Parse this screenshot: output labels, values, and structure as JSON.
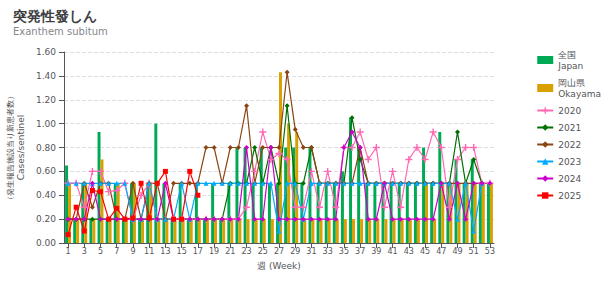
{
  "chart_data": {
    "type": "bar",
    "title": "突発性發しん",
    "subtitle": "Exanthem subitum",
    "xlabel": "週 (Week)",
    "ylabel": "Cases/sentinel",
    "annotations": [
      "（発生報告施設当り新患者数）"
    ],
    "x": [
      1,
      2,
      3,
      4,
      5,
      6,
      7,
      8,
      9,
      10,
      11,
      12,
      13,
      14,
      15,
      16,
      17,
      18,
      19,
      20,
      21,
      22,
      23,
      24,
      25,
      26,
      27,
      28,
      29,
      30,
      31,
      32,
      33,
      34,
      35,
      36,
      37,
      38,
      39,
      40,
      41,
      42,
      43,
      44,
      45,
      46,
      47,
      48,
      49,
      50,
      51,
      52,
      53
    ],
    "xlim": [
      0.5,
      53.5
    ],
    "xticks": [
      1,
      3,
      5,
      7,
      9,
      11,
      13,
      15,
      17,
      19,
      21,
      23,
      25,
      27,
      29,
      31,
      33,
      35,
      37,
      39,
      41,
      43,
      45,
      47,
      49,
      51,
      53
    ],
    "ylim": [
      0.0,
      1.6
    ],
    "yticks": [
      {
        "value": 0.0,
        "label": "0.00"
      },
      {
        "value": 0.2,
        "label": "0.20"
      },
      {
        "value": 0.4,
        "label": "0.40"
      },
      {
        "value": 0.6,
        "label": "0.60"
      },
      {
        "value": 0.8,
        "label": "0.80"
      },
      {
        "value": 1.0,
        "label": "1.00"
      },
      {
        "value": 1.2,
        "label": "1.20"
      },
      {
        "value": 1.4,
        "label": "1.40"
      },
      {
        "value": 1.6,
        "label": "1.60"
      }
    ],
    "grid": true,
    "legend": "right",
    "series": [
      {
        "name": "全国\nJapan",
        "type": "bar",
        "color": "#00aa55",
        "values": [
          0.65,
          0.2,
          0.5,
          0.2,
          0.93,
          0.2,
          0.5,
          0.2,
          0.5,
          0.2,
          0.5,
          1.0,
          0.5,
          0.2,
          0.5,
          0.2,
          0.5,
          0.2,
          0.5,
          0.2,
          0.5,
          0.8,
          0.8,
          0.5,
          0.8,
          0.5,
          0.5,
          0.8,
          0.8,
          0.5,
          0.8,
          0.5,
          0.5,
          0.5,
          0.6,
          1.05,
          0.8,
          0.5,
          0.5,
          0.5,
          0.5,
          0.5,
          0.5,
          0.5,
          0.8,
          0.5,
          0.93,
          0.5,
          0.7,
          0.5,
          0.7,
          0.5,
          0.5
        ]
      },
      {
        "name": "岡山県\nOkayama",
        "type": "bar",
        "color": "#daa000",
        "values": [
          0.5,
          0.2,
          0.5,
          0.2,
          0.7,
          0.2,
          0.5,
          0.2,
          0.5,
          0.2,
          0.5,
          0.2,
          0.2,
          0.2,
          0.2,
          0.2,
          0.2,
          0.2,
          0.2,
          0.2,
          0.2,
          0.2,
          0.2,
          0.2,
          0.2,
          0.2,
          1.43,
          1.0,
          0.93,
          0.2,
          0.2,
          0.2,
          0.2,
          0.2,
          0.2,
          0.2,
          0.2,
          0.2,
          0.2,
          0.2,
          0.2,
          0.2,
          0.2,
          0.2,
          0.5,
          0.2,
          0.5,
          0.5,
          0.5,
          0.5,
          0.5,
          0.5,
          0.5
        ]
      },
      {
        "name": "2020",
        "type": "line",
        "color": "#ff69b4",
        "marker": "plus",
        "values": [
          0.5,
          0.5,
          0.3,
          0.6,
          0.6,
          0.43,
          0.44,
          0.5,
          0.2,
          0.4,
          0.5,
          0.2,
          0.2,
          0.2,
          0.2,
          0.2,
          0.2,
          0.2,
          0.2,
          0.2,
          0.2,
          0.2,
          0.3,
          0.6,
          0.93,
          0.7,
          0.75,
          0.7,
          0.3,
          0.3,
          0.6,
          0.3,
          0.6,
          0.3,
          0.8,
          0.8,
          0.93,
          0.7,
          0.8,
          0.3,
          0.6,
          0.3,
          0.7,
          0.8,
          0.7,
          0.93,
          0.8,
          0.3,
          0.7,
          0.8,
          0.8,
          0.5,
          0.5
        ]
      },
      {
        "name": "2021",
        "type": "line",
        "color": "#007000",
        "marker": "diamond",
        "values": [
          0.2,
          0.2,
          0.2,
          0.2,
          0.2,
          0.2,
          0.2,
          0.2,
          0.2,
          0.2,
          0.2,
          0.2,
          0.2,
          0.2,
          0.2,
          0.2,
          0.2,
          0.2,
          0.2,
          0.2,
          0.5,
          0.5,
          0.5,
          0.8,
          0.5,
          0.8,
          0.5,
          1.15,
          0.5,
          0.5,
          0.8,
          0.5,
          0.5,
          0.5,
          0.5,
          1.05,
          0.7,
          0.5,
          0.5,
          0.5,
          0.5,
          0.5,
          0.5,
          0.5,
          0.5,
          0.5,
          0.5,
          0.5,
          0.93,
          0.5,
          0.7,
          0.5,
          null
        ]
      },
      {
        "name": "2022",
        "type": "line",
        "color": "#8b4513",
        "marker": "diamond",
        "values": [
          0.2,
          0.2,
          0.5,
          0.3,
          0.5,
          0.5,
          0.2,
          0.2,
          0.5,
          0.2,
          0.5,
          0.5,
          0.2,
          0.5,
          0.5,
          0.5,
          0.5,
          0.8,
          0.8,
          0.5,
          0.8,
          0.8,
          1.15,
          0.5,
          0.8,
          0.8,
          0.8,
          1.43,
          0.95,
          0.8,
          0.8,
          0.5,
          0.5,
          0.5,
          0.5,
          0.5,
          0.8,
          0.5,
          0.5,
          0.5,
          0.5,
          0.5,
          0.5,
          0.5,
          0.5,
          0.5,
          0.5,
          0.5,
          0.5,
          0.5,
          0.5,
          0.5,
          null
        ]
      },
      {
        "name": "2023",
        "type": "line",
        "color": "#00aaff",
        "marker": "triangle",
        "values": [
          0.5,
          0.5,
          0.5,
          0.5,
          0.5,
          0.5,
          0.5,
          0.5,
          0.2,
          0.2,
          0.5,
          0.2,
          0.2,
          0.2,
          0.5,
          0.2,
          0.5,
          0.5,
          0.5,
          0.5,
          0.5,
          0.5,
          0.5,
          0.5,
          0.5,
          0.5,
          0.1,
          0.5,
          0.5,
          0.2,
          0.5,
          0.5,
          0.5,
          0.5,
          0.5,
          0.5,
          0.5,
          0.5,
          0.5,
          0.5,
          0.5,
          0.5,
          0.5,
          0.5,
          0.5,
          0.5,
          0.5,
          0.5,
          0.2,
          0.5,
          0.1,
          0.5,
          null
        ]
      },
      {
        "name": "2024",
        "type": "line",
        "color": "#cc00cc",
        "marker": "diamond",
        "values": [
          0.2,
          0.2,
          0.2,
          0.5,
          0.2,
          0.2,
          0.2,
          0.2,
          0.2,
          0.2,
          0.2,
          0.2,
          0.5,
          0.2,
          0.2,
          0.2,
          0.2,
          0.2,
          0.2,
          0.2,
          0.2,
          0.2,
          0.8,
          0.2,
          0.2,
          0.8,
          0.2,
          0.2,
          0.2,
          0.2,
          0.2,
          0.2,
          0.2,
          0.2,
          0.8,
          0.93,
          0.8,
          0.2,
          0.2,
          0.5,
          0.2,
          0.2,
          0.2,
          0.2,
          0.2,
          0.2,
          0.5,
          0.2,
          0.5,
          0.2,
          0.5,
          0.5,
          0.5
        ]
      },
      {
        "name": "2025",
        "type": "line",
        "color": "#ff0000",
        "marker": "square",
        "values": [
          0.07,
          0.3,
          0.1,
          0.44,
          0.43,
          0.2,
          0.29,
          0.2,
          0.21,
          0.5,
          0.21,
          0.5,
          0.6,
          0.2,
          0.2,
          0.6,
          0.4,
          null,
          null,
          null,
          null,
          null,
          null,
          null,
          null,
          null,
          null,
          null,
          null,
          null,
          null,
          null,
          null,
          null,
          null,
          null,
          null,
          null,
          null,
          null,
          null,
          null,
          null,
          null,
          null,
          null,
          null,
          null,
          null,
          null,
          null,
          null,
          null
        ]
      }
    ]
  }
}
